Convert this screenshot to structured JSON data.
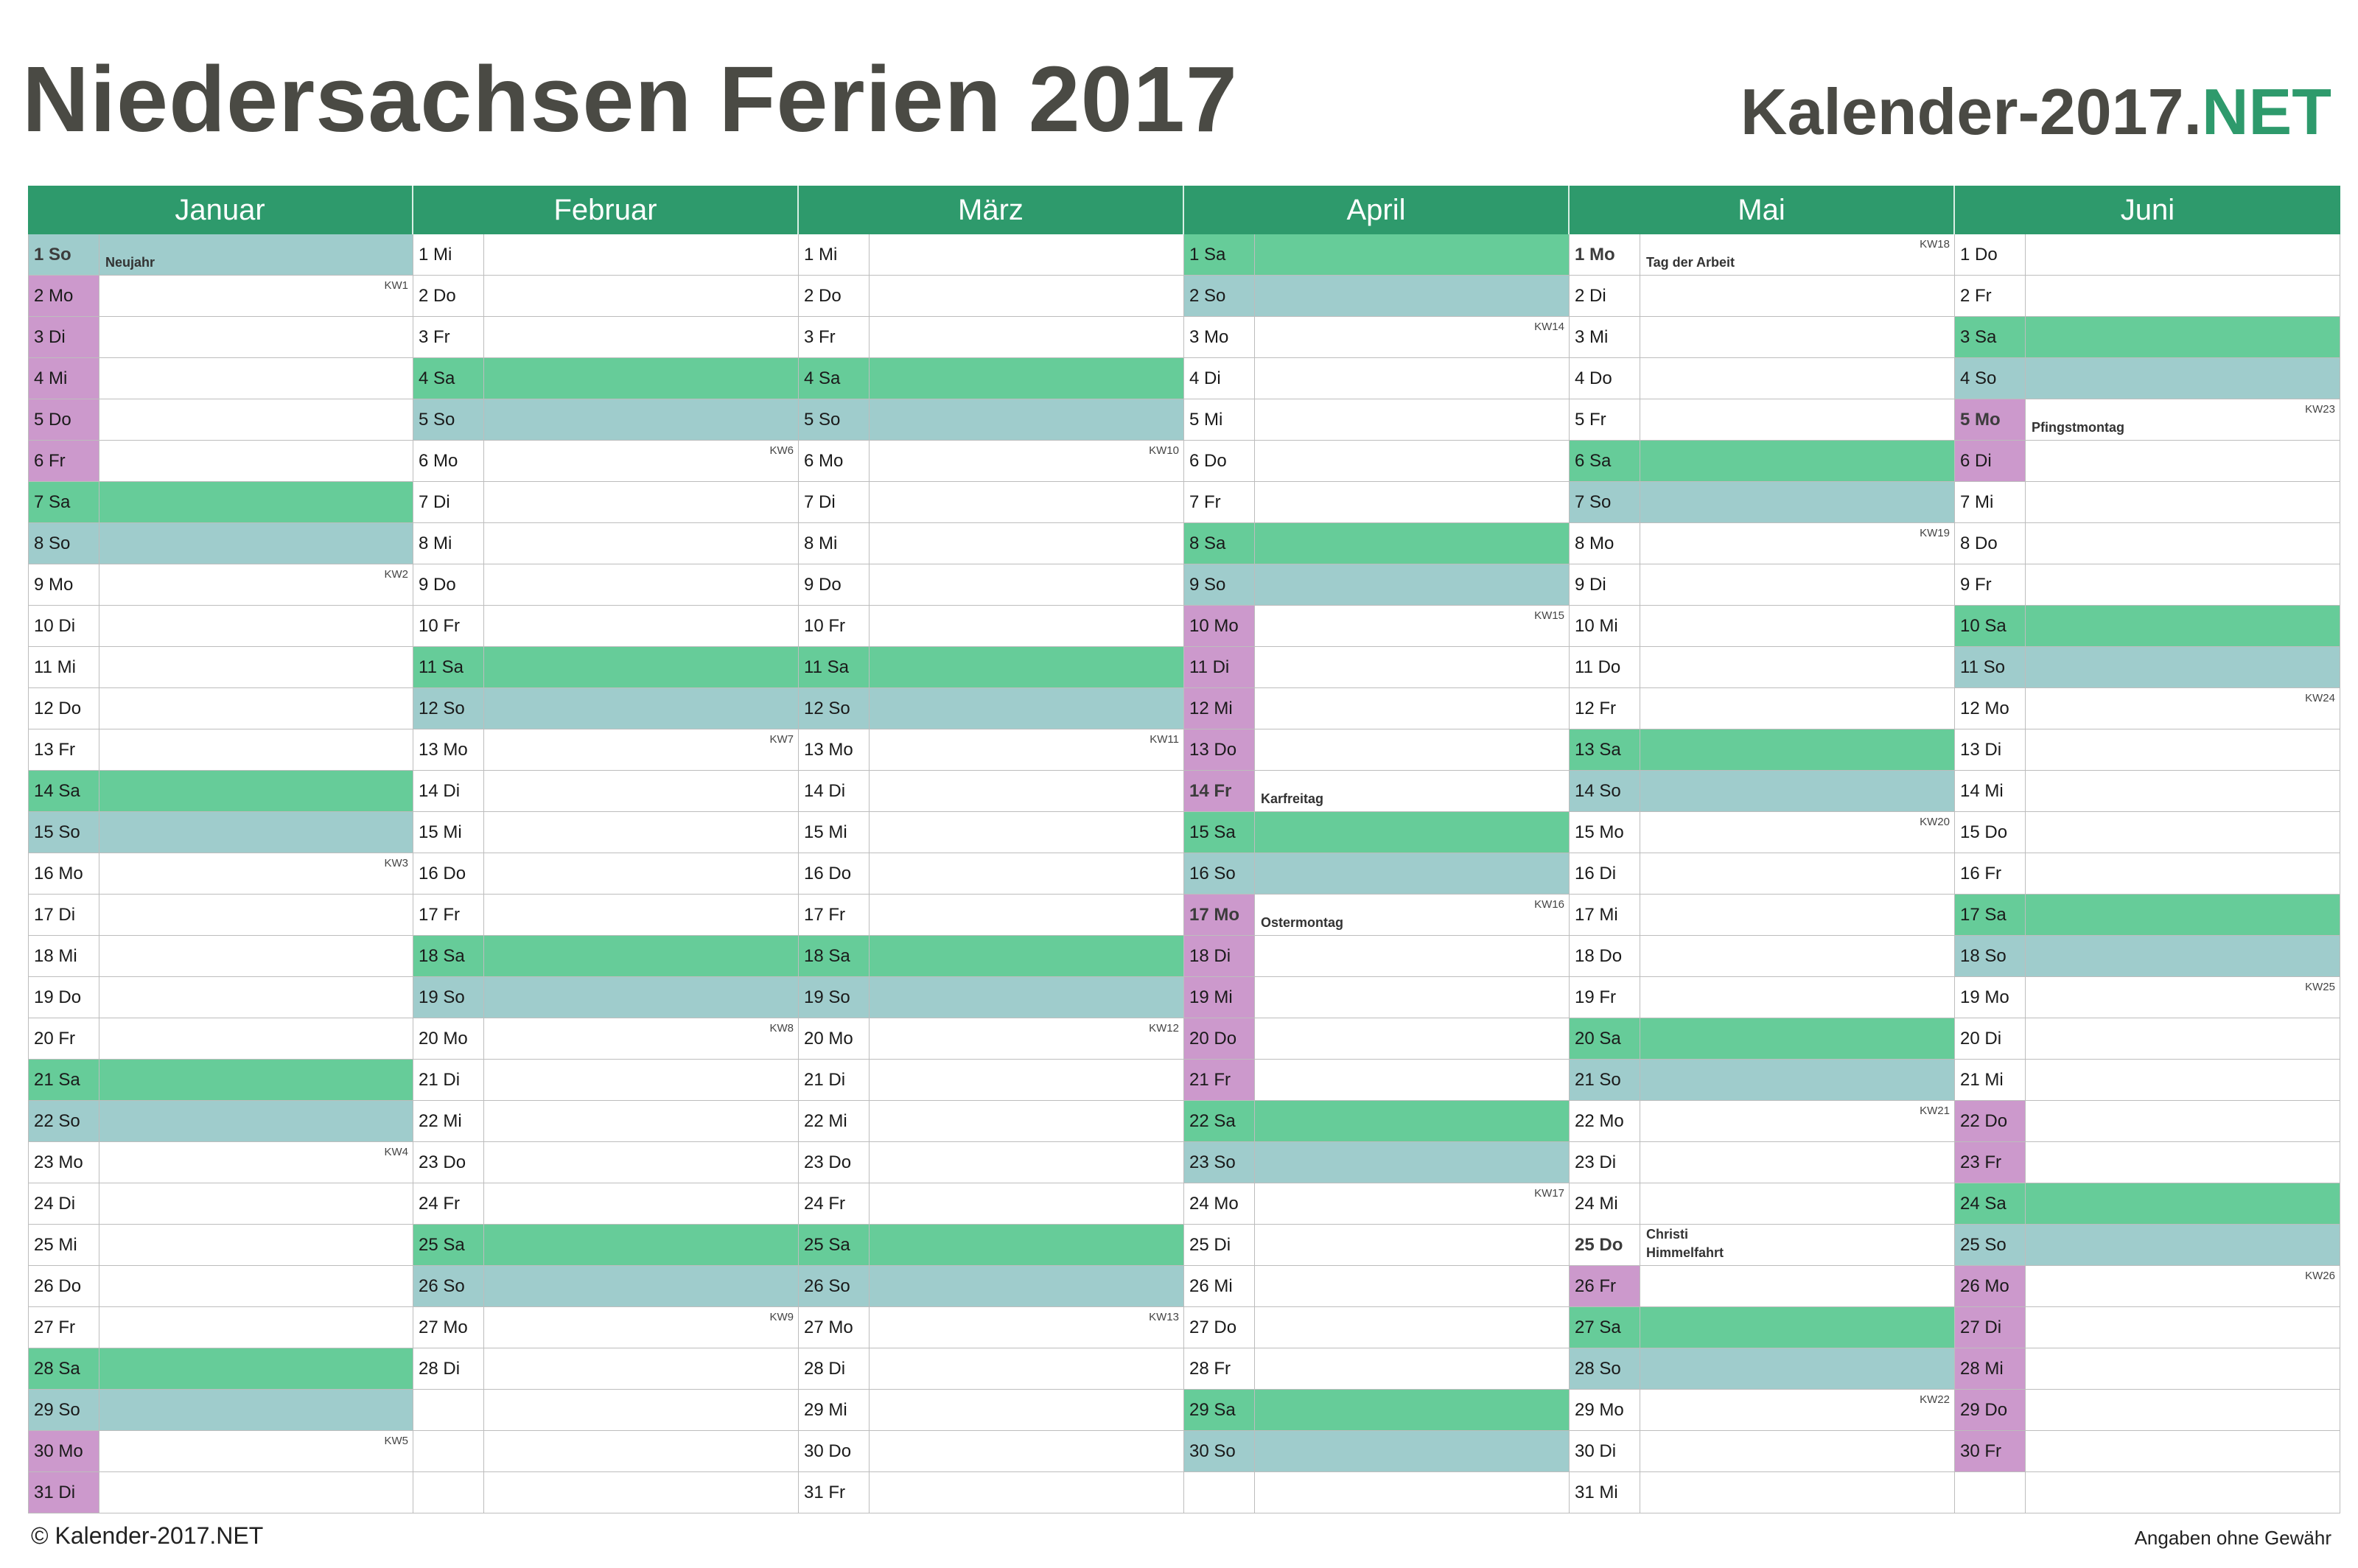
{
  "title": "Niedersachsen Ferien 2017",
  "brand": {
    "name": "Kalender-2017.",
    "suffix": "NET"
  },
  "footer": {
    "left": "© Kalender-2017.NET",
    "right": "Angaben ohne Gewähr"
  },
  "colors": {
    "header": "#2e9a6c",
    "saturday": "#66cc99",
    "sunday": "#9fcccc",
    "ferien": "#cc99cc"
  },
  "months": [
    {
      "name": "Januar",
      "days": [
        {
          "label": "1 So",
          "type": "so",
          "feiertag": "Neujahr"
        },
        {
          "label": "2 Mo",
          "type": "fe",
          "kw": "KW1"
        },
        {
          "label": "3 Di",
          "type": "fe"
        },
        {
          "label": "4 Mi",
          "type": "fe"
        },
        {
          "label": "5 Do",
          "type": "fe"
        },
        {
          "label": "6 Fr",
          "type": "fe"
        },
        {
          "label": "7 Sa",
          "type": "sa"
        },
        {
          "label": "8 So",
          "type": "so"
        },
        {
          "label": "9 Mo",
          "kw": "KW2"
        },
        {
          "label": "10 Di"
        },
        {
          "label": "11 Mi"
        },
        {
          "label": "12 Do"
        },
        {
          "label": "13 Fr"
        },
        {
          "label": "14 Sa",
          "type": "sa"
        },
        {
          "label": "15 So",
          "type": "so"
        },
        {
          "label": "16 Mo",
          "kw": "KW3"
        },
        {
          "label": "17 Di"
        },
        {
          "label": "18 Mi"
        },
        {
          "label": "19 Do"
        },
        {
          "label": "20 Fr"
        },
        {
          "label": "21 Sa",
          "type": "sa"
        },
        {
          "label": "22 So",
          "type": "so"
        },
        {
          "label": "23 Mo",
          "kw": "KW4"
        },
        {
          "label": "24 Di"
        },
        {
          "label": "25 Mi"
        },
        {
          "label": "26 Do"
        },
        {
          "label": "27 Fr"
        },
        {
          "label": "28 Sa",
          "type": "sa"
        },
        {
          "label": "29 So",
          "type": "so"
        },
        {
          "label": "30 Mo",
          "type": "fe",
          "kw": "KW5"
        },
        {
          "label": "31 Di",
          "type": "fe"
        }
      ]
    },
    {
      "name": "Februar",
      "days": [
        {
          "label": "1 Mi"
        },
        {
          "label": "2 Do"
        },
        {
          "label": "3 Fr"
        },
        {
          "label": "4 Sa",
          "type": "sa"
        },
        {
          "label": "5 So",
          "type": "so"
        },
        {
          "label": "6 Mo",
          "kw": "KW6"
        },
        {
          "label": "7 Di"
        },
        {
          "label": "8 Mi"
        },
        {
          "label": "9 Do"
        },
        {
          "label": "10 Fr"
        },
        {
          "label": "11 Sa",
          "type": "sa"
        },
        {
          "label": "12 So",
          "type": "so"
        },
        {
          "label": "13 Mo",
          "kw": "KW7"
        },
        {
          "label": "14 Di"
        },
        {
          "label": "15 Mi"
        },
        {
          "label": "16 Do"
        },
        {
          "label": "17 Fr"
        },
        {
          "label": "18 Sa",
          "type": "sa"
        },
        {
          "label": "19 So",
          "type": "so"
        },
        {
          "label": "20 Mo",
          "kw": "KW8"
        },
        {
          "label": "21 Di"
        },
        {
          "label": "22 Mi"
        },
        {
          "label": "23 Do"
        },
        {
          "label": "24 Fr"
        },
        {
          "label": "25 Sa",
          "type": "sa"
        },
        {
          "label": "26 So",
          "type": "so"
        },
        {
          "label": "27 Mo",
          "kw": "KW9"
        },
        {
          "label": "28 Di"
        }
      ]
    },
    {
      "name": "März",
      "days": [
        {
          "label": "1 Mi"
        },
        {
          "label": "2 Do"
        },
        {
          "label": "3 Fr"
        },
        {
          "label": "4 Sa",
          "type": "sa"
        },
        {
          "label": "5 So",
          "type": "so"
        },
        {
          "label": "6 Mo",
          "kw": "KW10"
        },
        {
          "label": "7 Di"
        },
        {
          "label": "8 Mi"
        },
        {
          "label": "9 Do"
        },
        {
          "label": "10 Fr"
        },
        {
          "label": "11 Sa",
          "type": "sa"
        },
        {
          "label": "12 So",
          "type": "so"
        },
        {
          "label": "13 Mo",
          "kw": "KW11"
        },
        {
          "label": "14 Di"
        },
        {
          "label": "15 Mi"
        },
        {
          "label": "16 Do"
        },
        {
          "label": "17 Fr"
        },
        {
          "label": "18 Sa",
          "type": "sa"
        },
        {
          "label": "19 So",
          "type": "so"
        },
        {
          "label": "20 Mo",
          "kw": "KW12"
        },
        {
          "label": "21 Di"
        },
        {
          "label": "22 Mi"
        },
        {
          "label": "23 Do"
        },
        {
          "label": "24 Fr"
        },
        {
          "label": "25 Sa",
          "type": "sa"
        },
        {
          "label": "26 So",
          "type": "so"
        },
        {
          "label": "27 Mo",
          "kw": "KW13"
        },
        {
          "label": "28 Di"
        },
        {
          "label": "29 Mi"
        },
        {
          "label": "30 Do"
        },
        {
          "label": "31 Fr"
        }
      ]
    },
    {
      "name": "April",
      "days": [
        {
          "label": "1 Sa",
          "type": "sa"
        },
        {
          "label": "2 So",
          "type": "so"
        },
        {
          "label": "3 Mo",
          "kw": "KW14"
        },
        {
          "label": "4 Di"
        },
        {
          "label": "5 Mi"
        },
        {
          "label": "6 Do"
        },
        {
          "label": "7 Fr"
        },
        {
          "label": "8 Sa",
          "type": "sa"
        },
        {
          "label": "9 So",
          "type": "so"
        },
        {
          "label": "10 Mo",
          "type": "fe",
          "kw": "KW15"
        },
        {
          "label": "11 Di",
          "type": "fe"
        },
        {
          "label": "12 Mi",
          "type": "fe"
        },
        {
          "label": "13 Do",
          "type": "fe"
        },
        {
          "label": "14 Fr",
          "type": "fe",
          "feiertag": "Karfreitag"
        },
        {
          "label": "15 Sa",
          "type": "sa"
        },
        {
          "label": "16 So",
          "type": "so"
        },
        {
          "label": "17 Mo",
          "type": "fe",
          "kw": "KW16",
          "feiertag": "Ostermontag"
        },
        {
          "label": "18 Di",
          "type": "fe"
        },
        {
          "label": "19 Mi",
          "type": "fe"
        },
        {
          "label": "20 Do",
          "type": "fe"
        },
        {
          "label": "21 Fr",
          "type": "fe"
        },
        {
          "label": "22 Sa",
          "type": "sa"
        },
        {
          "label": "23 So",
          "type": "so"
        },
        {
          "label": "24 Mo",
          "kw": "KW17"
        },
        {
          "label": "25 Di"
        },
        {
          "label": "26 Mi"
        },
        {
          "label": "27 Do"
        },
        {
          "label": "28 Fr"
        },
        {
          "label": "29 Sa",
          "type": "sa"
        },
        {
          "label": "30 So",
          "type": "so"
        }
      ]
    },
    {
      "name": "Mai",
      "days": [
        {
          "label": "1 Mo",
          "kw": "KW18",
          "feiertag": "Tag der Arbeit"
        },
        {
          "label": "2 Di"
        },
        {
          "label": "3 Mi"
        },
        {
          "label": "4 Do"
        },
        {
          "label": "5 Fr"
        },
        {
          "label": "6 Sa",
          "type": "sa"
        },
        {
          "label": "7 So",
          "type": "so"
        },
        {
          "label": "8 Mo",
          "kw": "KW19"
        },
        {
          "label": "9 Di"
        },
        {
          "label": "10 Mi"
        },
        {
          "label": "11 Do"
        },
        {
          "label": "12 Fr"
        },
        {
          "label": "13 Sa",
          "type": "sa"
        },
        {
          "label": "14 So",
          "type": "so"
        },
        {
          "label": "15 Mo",
          "kw": "KW20"
        },
        {
          "label": "16 Di"
        },
        {
          "label": "17 Mi"
        },
        {
          "label": "18 Do"
        },
        {
          "label": "19 Fr"
        },
        {
          "label": "20 Sa",
          "type": "sa"
        },
        {
          "label": "21 So",
          "type": "so"
        },
        {
          "label": "22 Mo",
          "kw": "KW21"
        },
        {
          "label": "23 Di"
        },
        {
          "label": "24 Mi"
        },
        {
          "label": "25 Do",
          "feiertag": "Christi Himmelfahrt"
        },
        {
          "label": "26 Fr",
          "type": "fe"
        },
        {
          "label": "27 Sa",
          "type": "sa"
        },
        {
          "label": "28 So",
          "type": "so"
        },
        {
          "label": "29 Mo",
          "kw": "KW22"
        },
        {
          "label": "30 Di"
        },
        {
          "label": "31 Mi"
        }
      ]
    },
    {
      "name": "Juni",
      "days": [
        {
          "label": "1 Do"
        },
        {
          "label": "2 Fr"
        },
        {
          "label": "3 Sa",
          "type": "sa"
        },
        {
          "label": "4 So",
          "type": "so"
        },
        {
          "label": "5 Mo",
          "type": "fe",
          "kw": "KW23",
          "feiertag": "Pfingstmontag"
        },
        {
          "label": "6 Di",
          "type": "fe"
        },
        {
          "label": "7 Mi"
        },
        {
          "label": "8 Do"
        },
        {
          "label": "9 Fr"
        },
        {
          "label": "10 Sa",
          "type": "sa"
        },
        {
          "label": "11 So",
          "type": "so"
        },
        {
          "label": "12 Mo",
          "kw": "KW24"
        },
        {
          "label": "13 Di"
        },
        {
          "label": "14 Mi"
        },
        {
          "label": "15 Do"
        },
        {
          "label": "16 Fr"
        },
        {
          "label": "17 Sa",
          "type": "sa"
        },
        {
          "label": "18 So",
          "type": "so"
        },
        {
          "label": "19 Mo",
          "kw": "KW25"
        },
        {
          "label": "20 Di"
        },
        {
          "label": "21 Mi"
        },
        {
          "label": "22 Do",
          "type": "fe"
        },
        {
          "label": "23 Fr",
          "type": "fe"
        },
        {
          "label": "24 Sa",
          "type": "sa"
        },
        {
          "label": "25 So",
          "type": "so"
        },
        {
          "label": "26 Mo",
          "type": "fe",
          "kw": "KW26"
        },
        {
          "label": "27 Di",
          "type": "fe"
        },
        {
          "label": "28 Mi",
          "type": "fe"
        },
        {
          "label": "29 Do",
          "type": "fe"
        },
        {
          "label": "30 Fr",
          "type": "fe"
        }
      ]
    }
  ]
}
